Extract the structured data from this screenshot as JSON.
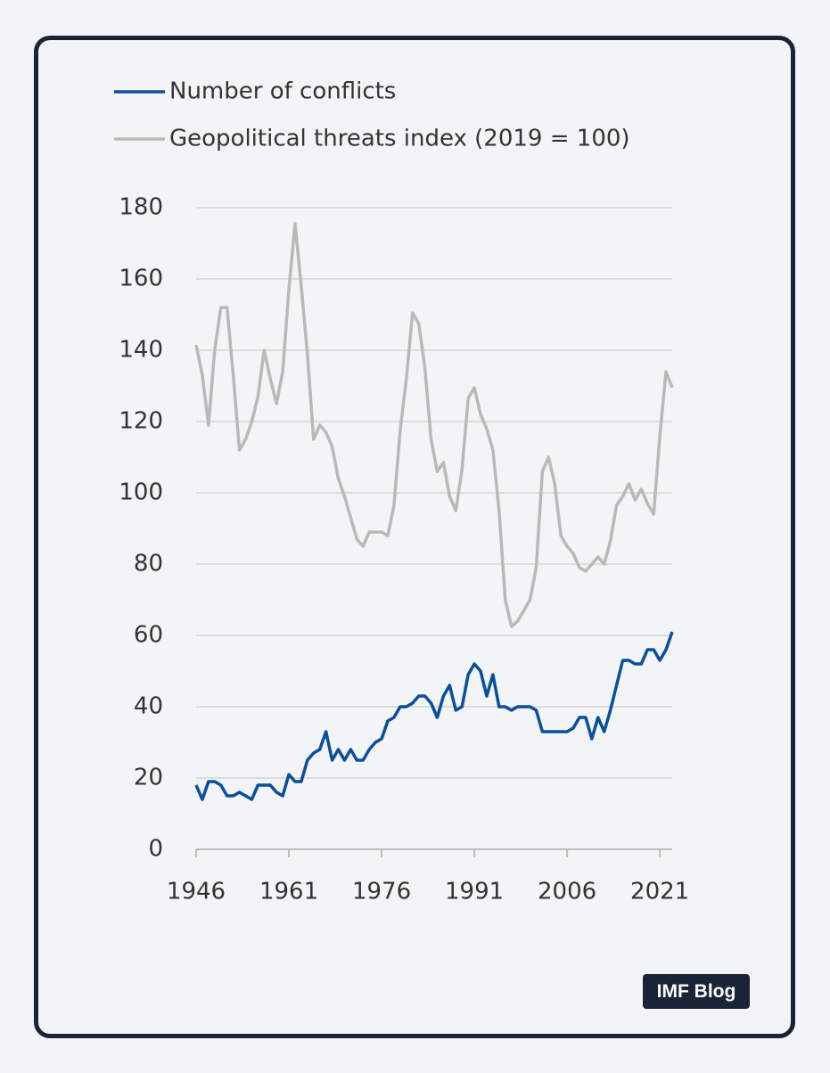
{
  "chart_data": {
    "type": "line",
    "x": [
      1946,
      1947,
      1948,
      1949,
      1950,
      1951,
      1952,
      1953,
      1954,
      1955,
      1956,
      1957,
      1958,
      1959,
      1960,
      1961,
      1962,
      1963,
      1964,
      1965,
      1966,
      1967,
      1968,
      1969,
      1970,
      1971,
      1972,
      1973,
      1974,
      1975,
      1976,
      1977,
      1978,
      1979,
      1980,
      1981,
      1982,
      1983,
      1984,
      1985,
      1986,
      1987,
      1988,
      1989,
      1990,
      1991,
      1992,
      1993,
      1994,
      1995,
      1996,
      1997,
      1998,
      1999,
      2000,
      2001,
      2002,
      2003,
      2004,
      2005,
      2006,
      2007,
      2008,
      2009,
      2010,
      2011,
      2012,
      2013,
      2014,
      2015,
      2016,
      2017,
      2018,
      2019,
      2020,
      2021,
      2022,
      2023
    ],
    "series": [
      {
        "name": "Number of conflicts",
        "color": "#0b4f9c",
        "values": [
          18,
          14,
          19,
          19,
          18,
          15,
          15,
          16,
          15,
          14,
          18,
          18,
          18,
          16,
          15,
          21,
          19,
          19,
          25,
          27,
          28,
          33,
          25,
          28,
          25,
          28,
          25,
          25,
          28,
          30,
          31,
          36,
          37,
          40,
          40,
          41,
          43,
          43,
          41,
          37,
          43,
          46,
          39,
          40,
          49,
          52,
          50,
          43,
          49,
          40,
          40,
          39,
          40,
          40,
          40,
          39,
          33,
          33,
          33,
          33,
          33,
          34,
          37,
          37,
          31,
          37,
          33,
          39,
          46,
          53,
          53,
          52,
          52,
          56,
          56,
          53,
          56,
          61
        ]
      },
      {
        "name": "Geopolitical threats index (2019 = 100)",
        "color": "#b9b9b9",
        "values": [
          141.5,
          133,
          119,
          140,
          152,
          152,
          133,
          112,
          115,
          120,
          127,
          140,
          132,
          125,
          134,
          157,
          175.5,
          158,
          139,
          115,
          119,
          117,
          113,
          104,
          99,
          93,
          87,
          85,
          89,
          89,
          89,
          88,
          96.5,
          117.5,
          132,
          150.5,
          147.5,
          135,
          115,
          106,
          108.5,
          99,
          95,
          106.5,
          126.5,
          129.5,
          122,
          118,
          112,
          95,
          70,
          62.5,
          64,
          67,
          70,
          79,
          106,
          110,
          102.5,
          88,
          85,
          83,
          79,
          78,
          80,
          82,
          80,
          86.5,
          96.5,
          99,
          102.5,
          98,
          101,
          97,
          94,
          116,
          134,
          129.5
        ]
      }
    ],
    "xlim": [
      1946,
      2023
    ],
    "xticks": [
      1946,
      1961,
      1976,
      1991,
      2006,
      2021
    ],
    "ylim": [
      0,
      180
    ],
    "yticks": [
      0,
      20,
      40,
      60,
      80,
      100,
      120,
      140,
      160,
      180
    ],
    "grid": true
  },
  "badge": "IMF Blog"
}
